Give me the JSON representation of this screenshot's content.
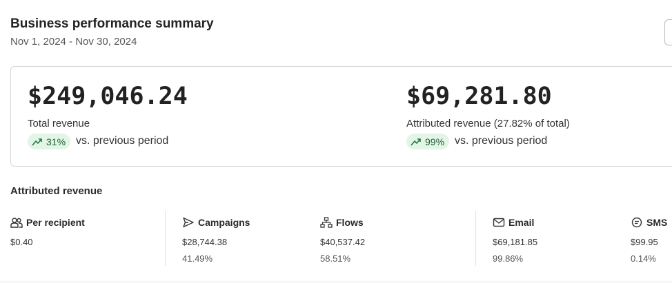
{
  "header": {
    "title": "Business performance summary",
    "date_range": "Nov 1, 2024 - Nov 30, 2024"
  },
  "summary": [
    {
      "value": "$249,046.24",
      "label": "Total revenue",
      "change": "31%",
      "comparison": "vs. previous period"
    },
    {
      "value": "$69,281.80",
      "label": "Attributed revenue (27.82% of total)",
      "change": "99%",
      "comparison": "vs. previous period"
    }
  ],
  "attributed": {
    "title": "Attributed revenue",
    "metrics": [
      {
        "label": "Per recipient",
        "value": "$0.40"
      },
      {
        "label": "Campaigns",
        "value": "$28,744.38",
        "share": "41.49%"
      },
      {
        "label": "Flows",
        "value": "$40,537.42",
        "share": "58.51%"
      },
      {
        "label": "Email",
        "value": "$69,181.85",
        "share": "99.86%"
      },
      {
        "label": "SMS",
        "value": "$99.95",
        "share": "0.14%"
      }
    ]
  }
}
